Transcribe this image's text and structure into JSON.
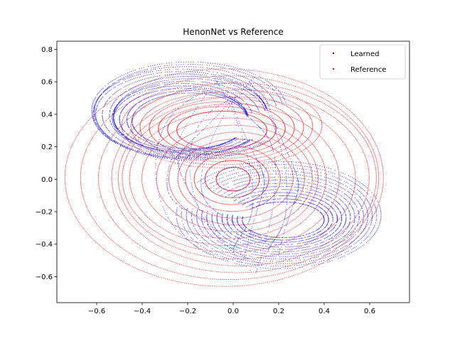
{
  "chart_data": {
    "type": "scatter",
    "title": "HenonNet vs Reference",
    "xlabel": "",
    "ylabel": "",
    "xlim": [
      -0.775,
      0.775
    ],
    "ylim": [
      -0.76,
      0.85
    ],
    "x_ticks": [
      -0.6,
      -0.4,
      -0.2,
      0.0,
      0.2,
      0.4,
      0.6
    ],
    "x_tick_labels": [
      "−0.6",
      "−0.4",
      "−0.2",
      "0.0",
      "0.2",
      "0.4",
      "0.6"
    ],
    "y_ticks": [
      -0.6,
      -0.4,
      -0.2,
      0.0,
      0.2,
      0.4,
      0.6,
      0.8
    ],
    "y_tick_labels": [
      "−0.6",
      "−0.4",
      "−0.2",
      "0.0",
      "0.2",
      "0.4",
      "0.6",
      "0.8"
    ],
    "grid": false,
    "legend_position": "top-right",
    "series": [
      {
        "name": "Learned",
        "color": "#0000ff",
        "marker": "dot",
        "center": [
          -0.21,
          0.36
        ],
        "inner_radius": [
          0.16,
          0.1
        ],
        "outer_radius": [
          0.43,
          0.42
        ],
        "secondary_center": [
          0.22,
          -0.25
        ],
        "secondary_inner_radius": [
          0.18,
          0.11
        ],
        "secondary_outer_radius": [
          0.45,
          0.33
        ],
        "num_orbits": 14
      },
      {
        "name": "Reference",
        "color": "#ff0000",
        "marker": "dot",
        "center": [
          0.0,
          0.0
        ],
        "inner_radius": 0.03,
        "outer_radius_x": 0.7,
        "outer_radius_y": 0.67,
        "num_orbits": 15,
        "secondary_center": [
          -0.05,
          0.33
        ],
        "secondary_outer_radius": [
          0.44,
          0.26
        ]
      }
    ]
  }
}
